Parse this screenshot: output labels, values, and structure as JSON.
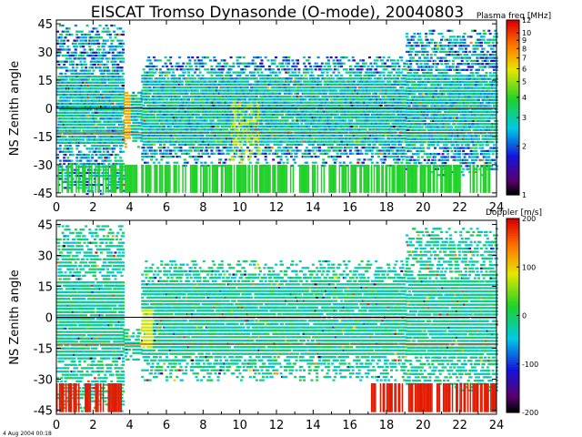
{
  "figure": {
    "title": "EISCAT Tromso Dynasonde (O-mode),  20040803",
    "timestamp": "4 Aug 2004 00:18"
  },
  "chart_data": [
    {
      "type": "heatmap",
      "name": "plasma-frequency-panel",
      "ylabel": "NS Zenith angle",
      "xlabel": "",
      "xlim": [
        0,
        24
      ],
      "ylim": [
        -47,
        47
      ],
      "xticks": [
        "0",
        "2",
        "4",
        "6",
        "8",
        "10",
        "12",
        "14",
        "16",
        "18",
        "20",
        "22",
        "24"
      ],
      "yticks": [
        "45",
        "30",
        "15",
        "0",
        "-15",
        "-30",
        "-45"
      ],
      "reference_lines": [
        {
          "y": 0,
          "color": "#000000"
        },
        {
          "y": -13,
          "color": "#cc3300"
        }
      ],
      "colorbar": {
        "label": "Plasma freq [MHz]",
        "scale": "log",
        "range": [
          1,
          12
        ],
        "ticks": [
          "12",
          "10",
          "9",
          "8",
          "7",
          "6",
          "5",
          "4",
          "3",
          "2",
          "1"
        ],
        "tick_values": [
          12,
          10,
          9,
          8,
          7,
          6,
          5,
          4,
          3,
          2,
          1
        ]
      },
      "description_bands": [
        {
          "x": [
            0,
            3.6
          ],
          "y": [
            -45,
            45
          ],
          "dominant": "green-cyan"
        },
        {
          "x": [
            3.6,
            4.0
          ],
          "y": [
            -20,
            15
          ],
          "dominant": "orange"
        },
        {
          "x": [
            4.0,
            24
          ],
          "y": [
            -25,
            20
          ],
          "dominant": "green-cyan"
        },
        {
          "x": [
            9.5,
            11.0
          ],
          "y": [
            -45,
            5
          ],
          "dominant": "yellow-green"
        }
      ]
    },
    {
      "type": "heatmap",
      "name": "doppler-panel",
      "ylabel": "NS Zenith angle",
      "xlabel": "",
      "xlim": [
        0,
        24
      ],
      "ylim": [
        -47,
        47
      ],
      "xticks": [
        "0",
        "2",
        "4",
        "6",
        "8",
        "10",
        "12",
        "14",
        "16",
        "18",
        "20",
        "22",
        "24"
      ],
      "yticks": [
        "45",
        "30",
        "15",
        "0",
        "-15",
        "-30",
        "-45"
      ],
      "reference_lines": [
        {
          "y": 0,
          "color": "#000000"
        },
        {
          "y": -13,
          "color": "#cc3300"
        }
      ],
      "colorbar": {
        "label": "Doppler [m/s]",
        "scale": "linear",
        "range": [
          -200,
          200
        ],
        "ticks": [
          "200",
          "100",
          "0",
          "-100",
          "-200"
        ],
        "tick_values": [
          200,
          100,
          0,
          -100,
          -200
        ]
      },
      "description_bands": [
        {
          "x": [
            0,
            3.6
          ],
          "y": [
            -45,
            45
          ],
          "dominant": "green-cyan"
        },
        {
          "x": [
            0,
            24
          ],
          "y": [
            -47,
            -30
          ],
          "dominant": "red"
        },
        {
          "x": [
            4.5,
            5.2
          ],
          "y": [
            -15,
            5
          ],
          "dominant": "yellow"
        }
      ]
    }
  ]
}
